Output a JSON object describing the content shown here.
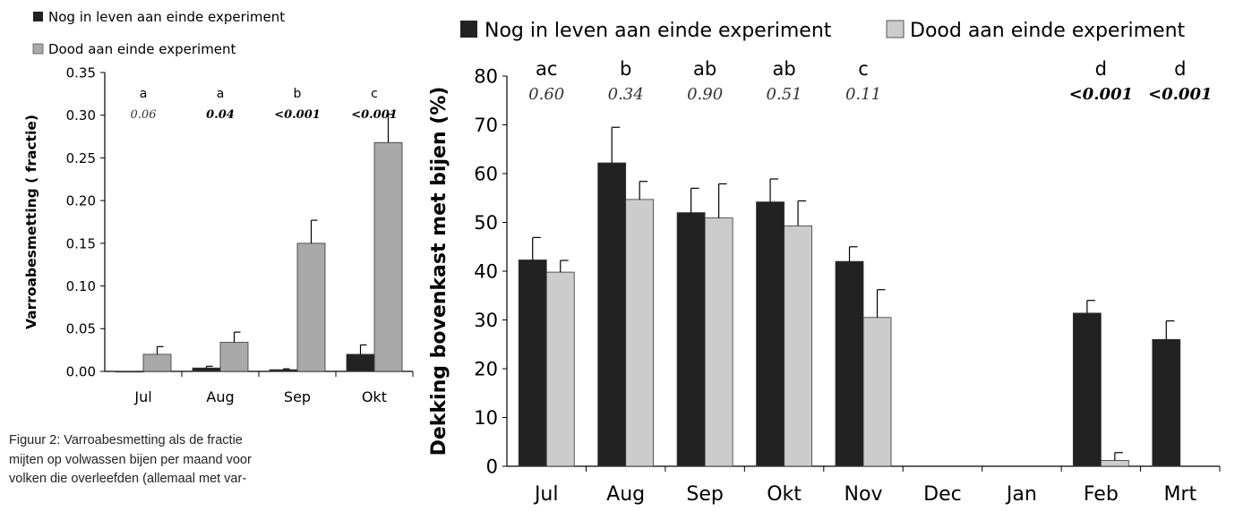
{
  "colors": {
    "alive": "#222222",
    "dead_left": "#a9a9a9",
    "dead_right": "#cccccc",
    "axis": "#000000"
  },
  "caption_lines": [
    "Figuur 2: Varroabesmetting als de fractie",
    "mijten op volwassen bijen per maand voor",
    "volken die overleefden (allemaal met var-"
  ],
  "chart_data": [
    {
      "type": "bar",
      "ylabel": "Varroabesmetting ( fractie)",
      "xlabel": "",
      "ylim": [
        0,
        0.35
      ],
      "yticks": [
        "0.00",
        "0.05",
        "0.10",
        "0.15",
        "0.20",
        "0.25",
        "0.30",
        "0.35"
      ],
      "categories": [
        "Jul",
        "Aug",
        "Sep",
        "Okt"
      ],
      "series": [
        {
          "name": "Nog in leven aan einde experiment",
          "values": [
            0,
            0.004,
            0.002,
            0.02
          ],
          "errors": [
            0,
            0.002,
            0.001,
            0.011
          ]
        },
        {
          "name": "Dood aan einde experiment",
          "values": [
            0.02,
            0.034,
            0.15,
            0.268
          ],
          "errors": [
            0.009,
            0.012,
            0.027,
            0.033
          ]
        }
      ],
      "letters": [
        "a",
        "a",
        "b",
        "c"
      ],
      "pvalues": [
        "0.06",
        "0.04",
        "<0.001",
        "<0.001"
      ],
      "pvalue_bold": [
        false,
        true,
        true,
        true
      ],
      "legend_placement": "top-left",
      "grid": false
    },
    {
      "type": "bar",
      "ylabel": "Dekking bovenkast met bijen (%)",
      "xlabel": "",
      "ylim": [
        0,
        80
      ],
      "yticks": [
        "0",
        "10",
        "20",
        "30",
        "40",
        "50",
        "60",
        "70",
        "80"
      ],
      "categories": [
        "Jul",
        "Aug",
        "Sep",
        "Okt",
        "Nov",
        "Dec",
        "Jan",
        "Feb",
        "Mrt"
      ],
      "series": [
        {
          "name": "Nog in leven aan einde experiment",
          "values": [
            42.3,
            62.2,
            52.0,
            54.2,
            42.0,
            null,
            null,
            31.4,
            26.0
          ],
          "errors": [
            4.6,
            7.3,
            5.0,
            4.7,
            3.0,
            null,
            null,
            2.6,
            3.8
          ]
        },
        {
          "name": "Dood aan einde experiment",
          "values": [
            39.8,
            54.7,
            50.9,
            49.3,
            30.5,
            null,
            null,
            1.2,
            null
          ],
          "errors": [
            2.4,
            3.7,
            7.0,
            5.1,
            5.7,
            null,
            null,
            1.6,
            null
          ]
        }
      ],
      "letters": [
        "ac",
        "b",
        "ab",
        "ab",
        "c",
        "",
        "",
        "d",
        "d"
      ],
      "pvalues": [
        "0.60",
        "0.34",
        "0.90",
        "0.51",
        "0.11",
        "",
        "",
        "<0.001",
        "<0.001"
      ],
      "pvalue_bold": [
        false,
        false,
        false,
        false,
        false,
        false,
        false,
        true,
        true
      ],
      "legend_placement": "top",
      "grid": false
    }
  ]
}
